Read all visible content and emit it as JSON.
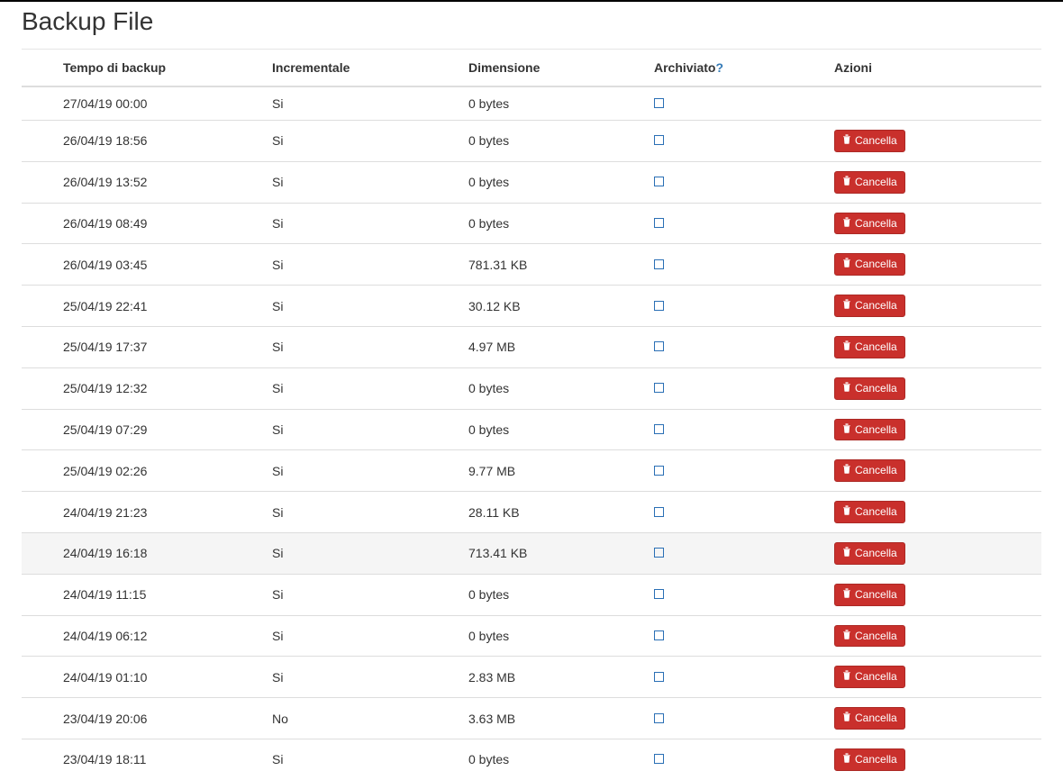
{
  "page": {
    "title": "Backup File"
  },
  "table": {
    "headers": {
      "time": "Tempo di backup",
      "incremental": "Incrementale",
      "size": "Dimensione",
      "archived": "Archiviato",
      "archived_help": "?",
      "actions": "Azioni"
    },
    "delete_label": "Cancella",
    "colors": {
      "btn_bg": "#c9302c",
      "btn_border": "#ac2925",
      "checkbox_border": "#2a6fb5",
      "row_hover_bg": "#f5f5f5",
      "divider": "#ddd"
    },
    "rows": [
      {
        "time": "27/04/19 00:00",
        "incremental": "Si",
        "size": "0 bytes",
        "archived": false,
        "deletable": false,
        "highlight": false
      },
      {
        "time": "26/04/19 18:56",
        "incremental": "Si",
        "size": "0 bytes",
        "archived": false,
        "deletable": true,
        "highlight": false
      },
      {
        "time": "26/04/19 13:52",
        "incremental": "Si",
        "size": "0 bytes",
        "archived": false,
        "deletable": true,
        "highlight": false
      },
      {
        "time": "26/04/19 08:49",
        "incremental": "Si",
        "size": "0 bytes",
        "archived": false,
        "deletable": true,
        "highlight": false
      },
      {
        "time": "26/04/19 03:45",
        "incremental": "Si",
        "size": "781.31 KB",
        "archived": false,
        "deletable": true,
        "highlight": false
      },
      {
        "time": "25/04/19 22:41",
        "incremental": "Si",
        "size": "30.12 KB",
        "archived": false,
        "deletable": true,
        "highlight": false
      },
      {
        "time": "25/04/19 17:37",
        "incremental": "Si",
        "size": "4.97 MB",
        "archived": false,
        "deletable": true,
        "highlight": false
      },
      {
        "time": "25/04/19 12:32",
        "incremental": "Si",
        "size": "0 bytes",
        "archived": false,
        "deletable": true,
        "highlight": false
      },
      {
        "time": "25/04/19 07:29",
        "incremental": "Si",
        "size": "0 bytes",
        "archived": false,
        "deletable": true,
        "highlight": false
      },
      {
        "time": "25/04/19 02:26",
        "incremental": "Si",
        "size": "9.77 MB",
        "archived": false,
        "deletable": true,
        "highlight": false
      },
      {
        "time": "24/04/19 21:23",
        "incremental": "Si",
        "size": "28.11 KB",
        "archived": false,
        "deletable": true,
        "highlight": false
      },
      {
        "time": "24/04/19 16:18",
        "incremental": "Si",
        "size": "713.41 KB",
        "archived": false,
        "deletable": true,
        "highlight": true
      },
      {
        "time": "24/04/19 11:15",
        "incremental": "Si",
        "size": "0 bytes",
        "archived": false,
        "deletable": true,
        "highlight": false
      },
      {
        "time": "24/04/19 06:12",
        "incremental": "Si",
        "size": "0 bytes",
        "archived": false,
        "deletable": true,
        "highlight": false
      },
      {
        "time": "24/04/19 01:10",
        "incremental": "Si",
        "size": "2.83 MB",
        "archived": false,
        "deletable": true,
        "highlight": false
      },
      {
        "time": "23/04/19 20:06",
        "incremental": "No",
        "size": "3.63 MB",
        "archived": false,
        "deletable": true,
        "highlight": false
      },
      {
        "time": "23/04/19 18:11",
        "incremental": "Si",
        "size": "0 bytes",
        "archived": false,
        "deletable": true,
        "highlight": false
      }
    ]
  }
}
